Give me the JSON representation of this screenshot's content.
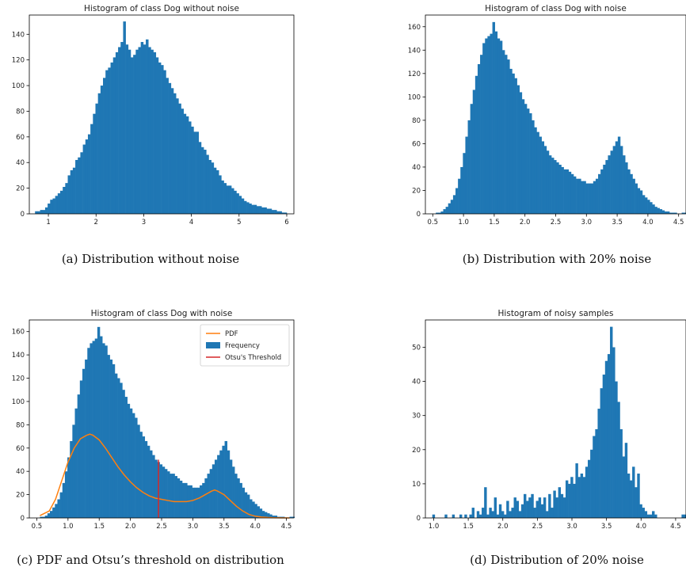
{
  "colors": {
    "bar": "#1f77b4",
    "pdf": "#ff7f0e",
    "threshold": "#d62728"
  },
  "captions": [
    "(a) Distribution without noise",
    "(b) Distribution with 20% noise",
    "(c) PDF and Otsu’s threshold on distribution",
    "(d) Distribution of 20% noise"
  ],
  "chart_data": [
    {
      "type": "bar",
      "title": "Histogram of class Dog without noise",
      "xlim": [
        0.6,
        6.15
      ],
      "ylim": [
        0,
        155
      ],
      "xticks": [
        1,
        2,
        3,
        4,
        5,
        6
      ],
      "yticks": [
        0,
        20,
        40,
        60,
        80,
        100,
        120,
        140
      ],
      "x_start": 0.72,
      "bin_width": 0.0528,
      "values": [
        2,
        2,
        3,
        3,
        5,
        8,
        11,
        12,
        14,
        16,
        18,
        21,
        24,
        30,
        34,
        36,
        42,
        44,
        48,
        54,
        58,
        62,
        70,
        78,
        86,
        94,
        100,
        106,
        112,
        114,
        118,
        122,
        126,
        130,
        134,
        150,
        132,
        128,
        122,
        124,
        128,
        130,
        134,
        132,
        136,
        130,
        128,
        126,
        122,
        118,
        116,
        112,
        106,
        102,
        98,
        94,
        90,
        86,
        82,
        78,
        76,
        72,
        68,
        64,
        64,
        56,
        52,
        50,
        46,
        42,
        40,
        36,
        34,
        30,
        26,
        24,
        22,
        22,
        20,
        18,
        16,
        14,
        12,
        10,
        9,
        8,
        7,
        7,
        6,
        6,
        5,
        5,
        4,
        4,
        3,
        3,
        2,
        2,
        1,
        1
      ]
    },
    {
      "type": "bar",
      "title": "Histogram of class Dog with noise",
      "xlim": [
        0.38,
        4.62
      ],
      "ylim": [
        0,
        170
      ],
      "xticks": [
        0.5,
        1.0,
        1.5,
        2.0,
        2.5,
        3.0,
        3.5,
        4.0,
        4.5
      ],
      "yticks": [
        0,
        20,
        40,
        60,
        80,
        100,
        120,
        140,
        160
      ],
      "x_start": 0.55,
      "bin_width": 0.04,
      "values": [
        1,
        1,
        2,
        4,
        6,
        9,
        12,
        16,
        22,
        30,
        40,
        52,
        66,
        80,
        94,
        106,
        118,
        128,
        136,
        146,
        150,
        152,
        154,
        164,
        156,
        150,
        148,
        140,
        136,
        132,
        124,
        120,
        116,
        110,
        104,
        98,
        94,
        90,
        86,
        80,
        74,
        70,
        66,
        62,
        58,
        54,
        50,
        48,
        46,
        44,
        42,
        40,
        38,
        38,
        36,
        34,
        32,
        30,
        30,
        28,
        28,
        26,
        26,
        26,
        28,
        30,
        34,
        38,
        42,
        46,
        50,
        54,
        58,
        62,
        66,
        58,
        50,
        44,
        38,
        34,
        30,
        26,
        22,
        20,
        16,
        14,
        12,
        10,
        8,
        6,
        5,
        4,
        3,
        2,
        2,
        1,
        1,
        1,
        0,
        0,
        1,
        1
      ]
    },
    {
      "type": "bar",
      "title": "Histogram of class Dog with noise",
      "legend": [
        "PDF",
        "Frequency",
        "Otsu's Threshold"
      ],
      "legend_position": "top-right",
      "xlim": [
        0.38,
        4.62
      ],
      "ylim": [
        0,
        170
      ],
      "xticks": [
        0.5,
        1.0,
        1.5,
        2.0,
        2.5,
        3.0,
        3.5,
        4.0,
        4.5
      ],
      "yticks": [
        0,
        20,
        40,
        60,
        80,
        100,
        120,
        140,
        160
      ],
      "x_start": 0.55,
      "bin_width": 0.04,
      "values": [
        1,
        1,
        2,
        4,
        6,
        9,
        12,
        16,
        22,
        30,
        40,
        52,
        66,
        80,
        94,
        106,
        118,
        128,
        136,
        146,
        150,
        152,
        154,
        164,
        156,
        150,
        148,
        140,
        136,
        132,
        124,
        120,
        116,
        110,
        104,
        98,
        94,
        90,
        86,
        80,
        74,
        70,
        66,
        62,
        58,
        54,
        50,
        48,
        46,
        44,
        42,
        40,
        38,
        38,
        36,
        34,
        32,
        30,
        30,
        28,
        28,
        26,
        26,
        26,
        28,
        30,
        34,
        38,
        42,
        46,
        50,
        54,
        58,
        62,
        66,
        58,
        50,
        44,
        38,
        34,
        30,
        26,
        22,
        20,
        16,
        14,
        12,
        10,
        8,
        6,
        5,
        4,
        3,
        2,
        2,
        1,
        1,
        1,
        0,
        0,
        1,
        1
      ],
      "pdf": {
        "x": [
          0.55,
          0.7,
          0.8,
          0.9,
          1.0,
          1.1,
          1.2,
          1.3,
          1.35,
          1.4,
          1.5,
          1.6,
          1.7,
          1.8,
          1.9,
          2.0,
          2.1,
          2.2,
          2.3,
          2.4,
          2.5,
          2.6,
          2.7,
          2.8,
          2.9,
          3.0,
          3.1,
          3.2,
          3.3,
          3.35,
          3.4,
          3.5,
          3.6,
          3.7,
          3.8,
          3.9,
          4.0,
          4.1,
          4.2,
          4.3,
          4.4,
          4.55
        ],
        "y": [
          2,
          6,
          16,
          32,
          48,
          60,
          68,
          71,
          72,
          71,
          67,
          60,
          52,
          44,
          37,
          31,
          26,
          22,
          19,
          17,
          16,
          15,
          14,
          14,
          14,
          15,
          17,
          20,
          23,
          24,
          23,
          20,
          15,
          10,
          6,
          3,
          1.5,
          0.8,
          0.4,
          0.2,
          0.1,
          0
        ]
      },
      "threshold": {
        "x": 2.45,
        "y_top": 50
      }
    },
    {
      "type": "bar",
      "title": "Histogram of noisy samples",
      "xlim": [
        0.88,
        4.65
      ],
      "ylim": [
        0,
        58
      ],
      "xticks": [
        1.0,
        1.5,
        2.0,
        2.5,
        3.0,
        3.5,
        4.0,
        4.5
      ],
      "yticks": [
        0,
        10,
        20,
        30,
        40,
        50
      ],
      "x_start": 0.98,
      "bin_width": 0.0357,
      "values": [
        1,
        0,
        0,
        0,
        0,
        1,
        0,
        0,
        1,
        0,
        0,
        1,
        0,
        1,
        0,
        1,
        3,
        0,
        2,
        1,
        3,
        9,
        1,
        3,
        2,
        6,
        1,
        4,
        2,
        1,
        5,
        2,
        3,
        6,
        5,
        2,
        4,
        7,
        5,
        6,
        7,
        3,
        5,
        6,
        4,
        6,
        2,
        7,
        3,
        8,
        6,
        9,
        7,
        6,
        11,
        10,
        12,
        10,
        16,
        12,
        13,
        12,
        15,
        17,
        20,
        24,
        26,
        32,
        38,
        42,
        46,
        48,
        56,
        50,
        40,
        34,
        26,
        18,
        22,
        13,
        11,
        15,
        9,
        13,
        4,
        3,
        2,
        1,
        1,
        2,
        1,
        0,
        0,
        0,
        0,
        0,
        0,
        0,
        0,
        0,
        0,
        1,
        1
      ]
    }
  ]
}
